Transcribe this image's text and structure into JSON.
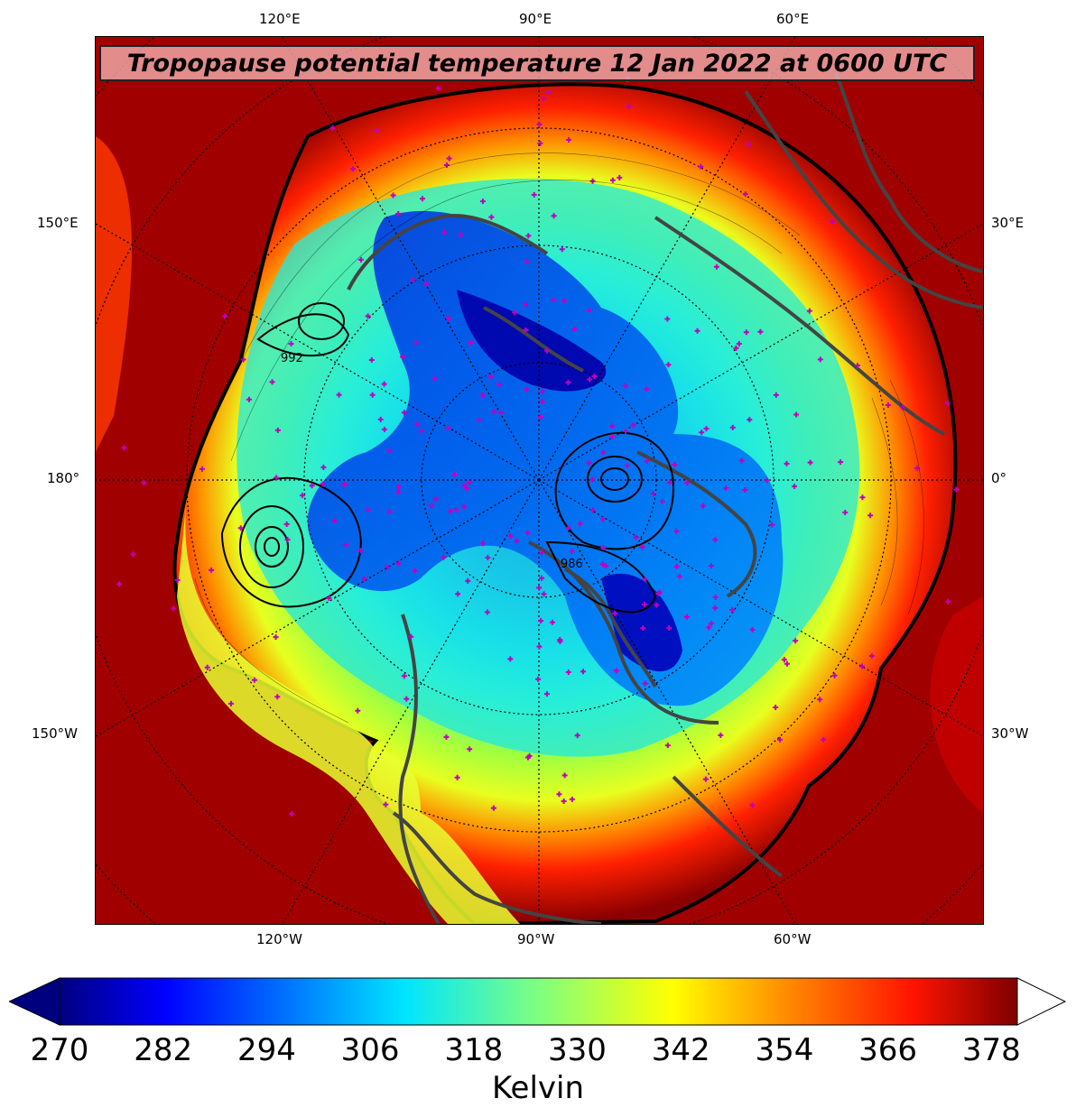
{
  "title": "Tropopause potential temperature 12 Jan 2022 at 0600 UTC",
  "lon_labels": {
    "top": [
      "120°E",
      "90°E",
      "60°E"
    ],
    "bottom": [
      "120°W",
      "90°W",
      "60°W"
    ],
    "left": [
      "150°E",
      "180°",
      "150°W"
    ],
    "right": [
      "30°E",
      "0°",
      "30°W"
    ]
  },
  "colorbar": {
    "ticks": [
      "270",
      "282",
      "294",
      "306",
      "318",
      "330",
      "342",
      "354",
      "366",
      "378"
    ],
    "min": 270,
    "max": 381,
    "label": "Kelvin",
    "colormap": "jet",
    "extend": "both"
  },
  "contour_labels": [
    "992",
    "986"
  ],
  "colors": {
    "surface_edge": "#8b0000",
    "coastline": "#444444",
    "station_marker": "#c000c0"
  }
}
